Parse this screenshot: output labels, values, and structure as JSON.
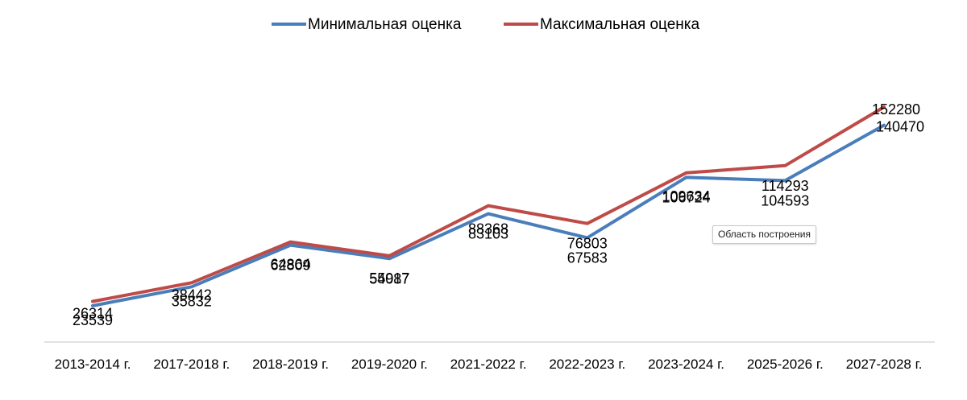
{
  "chart_data": {
    "type": "line",
    "categories": [
      "2013-2014 г.",
      "2017-2018 г.",
      "2018-2019 г.",
      "2019-2020 г.",
      "2021-2022 г.",
      "2022-2023 г.",
      "2023-2024 г.",
      "2025-2026 г.",
      "2027-2028 г."
    ],
    "series": [
      {
        "name": "Минимальная оценка",
        "color": "#4a7ebb",
        "values": [
          23539,
          35832,
          62809,
          54087,
          83103,
          67583,
          106724,
          104593,
          140470
        ]
      },
      {
        "name": "Максимальная оценка",
        "color": "#be4b48",
        "values": [
          26314,
          38442,
          64864,
          55917,
          88368,
          76803,
          109634,
          114293,
          152280
        ]
      }
    ],
    "legend_position": "top",
    "grid": false,
    "data_labels": true
  },
  "tooltip": {
    "text": "Область построения"
  }
}
